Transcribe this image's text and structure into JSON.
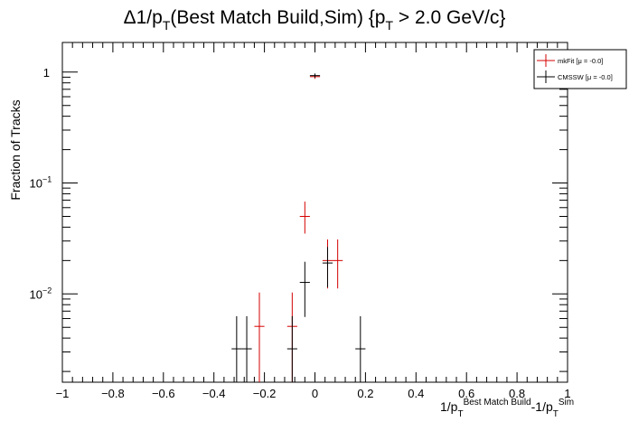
{
  "chart_data": {
    "type": "scatter",
    "title_main": "Δ1/p",
    "title_sub1": "T",
    "title_mid": "(Best Match Build,Sim) {p",
    "title_sub2": "T",
    "title_end": " > 2.0 GeV/c}",
    "ylabel": "Fraction of Tracks",
    "xlabel": {
      "part1": "1/p",
      "sub1": "T",
      "sup1": "Best Match Build",
      "part2": "-1/p",
      "sub2": "T",
      "sup2": "Sim"
    },
    "xlim": [
      -1,
      1
    ],
    "ylim": [
      0.0016,
      1.85
    ],
    "yscale": "log",
    "x_ticks": [
      {
        "v": -1,
        "label": "−1"
      },
      {
        "v": -0.8,
        "label": "−0.8"
      },
      {
        "v": -0.6,
        "label": "−0.6"
      },
      {
        "v": -0.4,
        "label": "−0.4"
      },
      {
        "v": -0.2,
        "label": "−0.2"
      },
      {
        "v": 0,
        "label": "0"
      },
      {
        "v": 0.2,
        "label": "0.2"
      },
      {
        "v": 0.4,
        "label": "0.4"
      },
      {
        "v": 0.6,
        "label": "0.6"
      },
      {
        "v": 0.8,
        "label": "0.8"
      },
      {
        "v": 1,
        "label": "1"
      }
    ],
    "y_ticks": [
      {
        "v": 1,
        "base": "1",
        "exp": ""
      },
      {
        "v": 0.1,
        "base": "10",
        "exp": "−1"
      },
      {
        "v": 0.01,
        "base": "10",
        "exp": "−2"
      }
    ],
    "legend_position": "top-right",
    "bin_halfwidth": 0.02,
    "series": [
      {
        "name": "mkFit",
        "legend_label": "mkFit  [μ = -0.0]",
        "color": "#d40000",
        "points": [
          {
            "x": -0.22,
            "y": 0.0051,
            "lo": 0.0016,
            "hi": 0.0103
          },
          {
            "x": -0.09,
            "y": 0.0051,
            "lo": 0.0016,
            "hi": 0.0103
          },
          {
            "x": -0.04,
            "y": 0.05,
            "lo": 0.035,
            "hi": 0.068
          },
          {
            "x": 0.0,
            "y": 0.91,
            "lo": 0.87,
            "hi": 0.95
          },
          {
            "x": 0.05,
            "y": 0.02,
            "lo": 0.0112,
            "hi": 0.031
          },
          {
            "x": 0.09,
            "y": 0.02,
            "lo": 0.0112,
            "hi": 0.031
          }
        ]
      },
      {
        "name": "CMSSW",
        "legend_label": "CMSSW  [μ = -0.0]",
        "color": "#000000",
        "points": [
          {
            "x": -0.31,
            "y": 0.0032,
            "lo": 0.0016,
            "hi": 0.0063
          },
          {
            "x": -0.27,
            "y": 0.0032,
            "lo": 0.0016,
            "hi": 0.0063
          },
          {
            "x": -0.09,
            "y": 0.0032,
            "lo": 0.0016,
            "hi": 0.0063
          },
          {
            "x": -0.04,
            "y": 0.0127,
            "lo": 0.0062,
            "hi": 0.0195
          },
          {
            "x": 0.0,
            "y": 0.93,
            "lo": 0.89,
            "hi": 0.97
          },
          {
            "x": 0.05,
            "y": 0.019,
            "lo": 0.0115,
            "hi": 0.0265
          },
          {
            "x": 0.18,
            "y": 0.0032,
            "lo": 0.0016,
            "hi": 0.0063
          }
        ]
      }
    ]
  }
}
